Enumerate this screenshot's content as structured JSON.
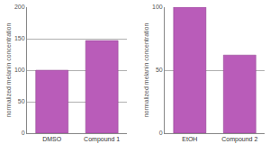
{
  "chart_data": [
    {
      "type": "bar",
      "categories": [
        "DMSO",
        "Compound 1"
      ],
      "values": [
        100,
        147
      ],
      "color": "#b95cb9",
      "ylabel": "normalized melanin concentration",
      "ylim": [
        0,
        200
      ],
      "yticks": [
        0,
        50,
        100,
        150,
        200
      ],
      "grid": true
    },
    {
      "type": "bar",
      "categories": [
        "EtOH",
        "Compound 2"
      ],
      "values": [
        100,
        62
      ],
      "color": "#b95cb9",
      "ylabel": "normalized melanin concentration",
      "ylim": [
        0,
        100
      ],
      "yticks": [
        0,
        50,
        100
      ],
      "grid": true
    }
  ]
}
